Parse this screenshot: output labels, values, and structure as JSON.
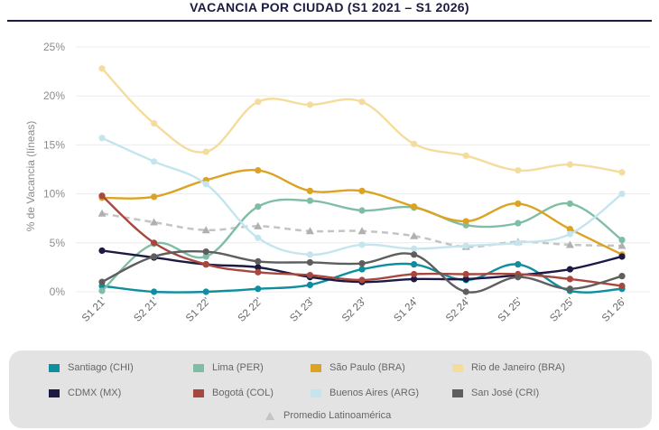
{
  "chart_data": {
    "type": "line",
    "title": "VACANCIA POR CIUDAD (S1 2021 – S1 2026)",
    "ylabel": "% de Vacancia (líneas)",
    "xlabel": "",
    "ylim": [
      0,
      25
    ],
    "yticks": [
      "0%",
      "5%",
      "10%",
      "15%",
      "20%",
      "25%"
    ],
    "grid": true,
    "legend_position": "bottom",
    "categories": [
      "S1 21'",
      "S2 21'",
      "S1 22'",
      "S2 22'",
      "S1 23'",
      "S2 23'",
      "S1 24'",
      "S2 24'",
      "S1 25'",
      "S2 25'",
      "S1 26'"
    ],
    "series": [
      {
        "name": "Santiago (CHI)",
        "color": "#0e8e9e",
        "values": [
          0.6,
          0.0,
          0.0,
          0.3,
          0.7,
          2.3,
          2.8,
          1.2,
          2.8,
          0.1,
          0.3
        ]
      },
      {
        "name": "Lima (PER)",
        "color": "#7fbea4",
        "values": [
          0.1,
          4.9,
          3.6,
          8.7,
          9.3,
          8.3,
          8.6,
          6.8,
          7.0,
          9.0,
          5.3
        ]
      },
      {
        "name": "São Paulo (BRA)",
        "color": "#dba321",
        "values": [
          9.6,
          9.7,
          11.4,
          12.4,
          10.3,
          10.3,
          8.7,
          7.2,
          9.0,
          6.4,
          3.8
        ]
      },
      {
        "name": "Rio de Janeiro (BRA)",
        "color": "#f4dc9c",
        "values": [
          22.8,
          17.2,
          14.3,
          19.4,
          19.1,
          19.4,
          15.1,
          13.9,
          12.4,
          13.0,
          12.2
        ]
      },
      {
        "name": "CDMX (MX)",
        "color": "#1c1a45",
        "values": [
          4.2,
          3.5,
          2.8,
          2.5,
          1.5,
          1.0,
          1.3,
          1.3,
          1.7,
          2.3,
          3.6
        ]
      },
      {
        "name": "Bogotá (COL)",
        "color": "#a8473e",
        "values": [
          9.8,
          5.0,
          2.8,
          2.0,
          1.7,
          1.2,
          1.8,
          1.8,
          1.8,
          1.3,
          0.6
        ]
      },
      {
        "name": "Buenos Aires (ARG)",
        "color": "#c4e5ee",
        "values": [
          15.7,
          13.3,
          11.0,
          5.5,
          3.8,
          4.8,
          4.4,
          4.7,
          5.0,
          5.9,
          10.0
        ]
      },
      {
        "name": "San José (CRI)",
        "color": "#5e5e5e",
        "values": [
          1.0,
          3.6,
          4.1,
          3.1,
          3.0,
          2.9,
          3.8,
          0.0,
          1.5,
          0.3,
          1.6
        ]
      }
    ],
    "average": {
      "name": "Promedio Latinoamérica",
      "color": "#c4c4c4",
      "values": [
        8.0,
        7.1,
        6.3,
        6.7,
        6.2,
        6.2,
        5.7,
        4.6,
        5.1,
        4.8,
        4.7
      ]
    }
  }
}
